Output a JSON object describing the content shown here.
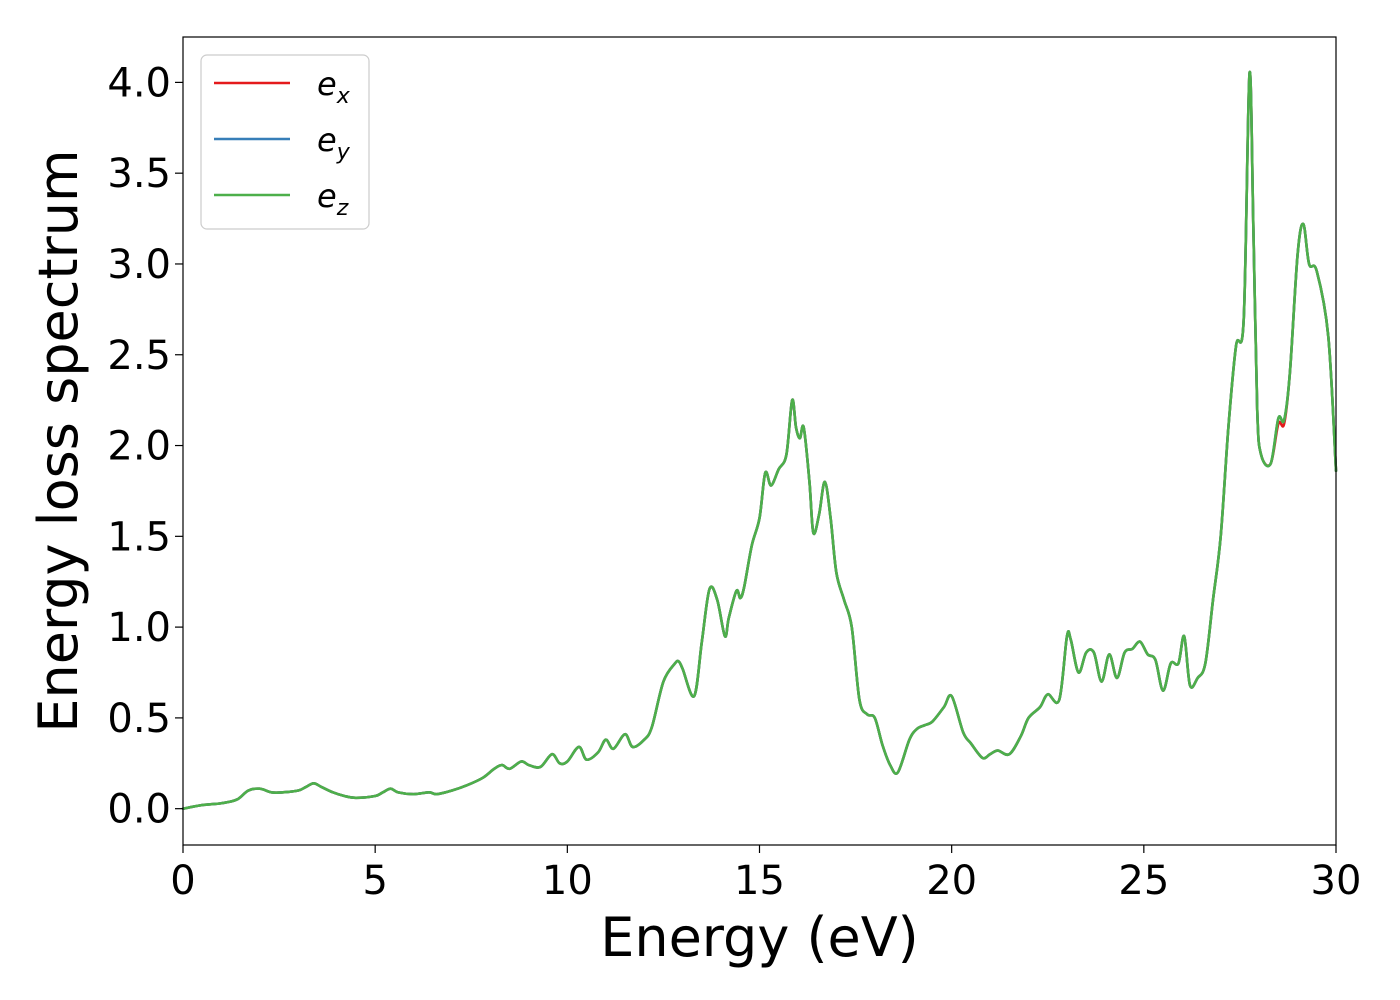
{
  "chart_data": {
    "type": "line",
    "title": "",
    "xlabel": "Energy (eV)",
    "ylabel": "Energy loss spectrum",
    "xlim": [
      0,
      30
    ],
    "ylim": [
      -0.2,
      4.25
    ],
    "xticks": [
      0,
      5,
      10,
      15,
      20,
      25,
      30
    ],
    "yticks": [
      0.0,
      0.5,
      1.0,
      1.5,
      2.0,
      2.5,
      3.0,
      3.5,
      4.0
    ],
    "xtick_labels": [
      "0",
      "5",
      "10",
      "15",
      "20",
      "25",
      "30"
    ],
    "ytick_labels": [
      "0.0",
      "0.5",
      "1.0",
      "1.5",
      "2.0",
      "2.5",
      "3.0",
      "3.5",
      "4.0"
    ],
    "grid": false,
    "legend_position": "top-left",
    "x": [
      0,
      0.5,
      1.0,
      1.4,
      1.7,
      2.0,
      2.3,
      2.6,
      3.0,
      3.2,
      3.4,
      3.6,
      3.9,
      4.2,
      4.5,
      5.0,
      5.2,
      5.4,
      5.6,
      6.0,
      6.4,
      6.6,
      7.0,
      7.4,
      7.8,
      8.1,
      8.3,
      8.5,
      8.8,
      9.0,
      9.3,
      9.6,
      9.8,
      10.0,
      10.3,
      10.5,
      10.8,
      11.0,
      11.2,
      11.5,
      11.7,
      12.0,
      12.2,
      12.5,
      12.8,
      12.9,
      13.0,
      13.3,
      13.5,
      13.7,
      13.9,
      14.1,
      14.2,
      14.4,
      14.5,
      14.6,
      14.8,
      15.0,
      15.15,
      15.3,
      15.5,
      15.7,
      15.85,
      15.95,
      16.05,
      16.15,
      16.3,
      16.4,
      16.55,
      16.7,
      16.85,
      17.0,
      17.2,
      17.4,
      17.6,
      17.8,
      18.0,
      18.2,
      18.4,
      18.6,
      18.9,
      19.1,
      19.3,
      19.5,
      19.8,
      20.0,
      20.3,
      20.5,
      20.8,
      21.0,
      21.2,
      21.5,
      21.8,
      22.0,
      22.3,
      22.5,
      22.8,
      23.0,
      23.1,
      23.3,
      23.5,
      23.7,
      23.9,
      24.1,
      24.3,
      24.5,
      24.7,
      24.9,
      25.1,
      25.3,
      25.5,
      25.7,
      25.9,
      26.05,
      26.2,
      26.4,
      26.6,
      26.8,
      27.0,
      27.2,
      27.4,
      27.6,
      27.75,
      27.85,
      27.95,
      28.05,
      28.3,
      28.5,
      28.65,
      28.8,
      29.0,
      29.15,
      29.3,
      29.5,
      29.8,
      30.0
    ],
    "series": [
      {
        "name": "e_x",
        "color": "#e41a1c",
        "values": [
          0.0,
          0.02,
          0.03,
          0.05,
          0.1,
          0.11,
          0.09,
          0.09,
          0.1,
          0.12,
          0.14,
          0.12,
          0.09,
          0.07,
          0.06,
          0.07,
          0.09,
          0.11,
          0.09,
          0.08,
          0.09,
          0.08,
          0.1,
          0.13,
          0.17,
          0.22,
          0.24,
          0.22,
          0.26,
          0.24,
          0.23,
          0.3,
          0.25,
          0.26,
          0.34,
          0.27,
          0.31,
          0.38,
          0.33,
          0.41,
          0.34,
          0.38,
          0.45,
          0.7,
          0.8,
          0.81,
          0.77,
          0.62,
          0.92,
          1.21,
          1.15,
          0.95,
          1.05,
          1.2,
          1.16,
          1.22,
          1.45,
          1.6,
          1.85,
          1.78,
          1.87,
          1.95,
          2.25,
          2.1,
          2.04,
          2.1,
          1.8,
          1.52,
          1.62,
          1.8,
          1.6,
          1.3,
          1.15,
          1.0,
          0.6,
          0.52,
          0.5,
          0.35,
          0.24,
          0.2,
          0.38,
          0.44,
          0.46,
          0.48,
          0.56,
          0.62,
          0.42,
          0.36,
          0.28,
          0.3,
          0.32,
          0.3,
          0.4,
          0.5,
          0.56,
          0.63,
          0.6,
          0.95,
          0.93,
          0.75,
          0.86,
          0.86,
          0.7,
          0.85,
          0.72,
          0.86,
          0.88,
          0.92,
          0.85,
          0.82,
          0.65,
          0.8,
          0.8,
          0.95,
          0.68,
          0.72,
          0.8,
          1.15,
          1.5,
          2.1,
          2.55,
          2.7,
          4.05,
          3.2,
          2.2,
          1.95,
          1.9,
          2.12,
          2.12,
          2.4,
          3.05,
          3.22,
          3.0,
          2.96,
          2.6,
          1.86
        ]
      },
      {
        "name": "e_y",
        "color": "#377eb8",
        "values": [
          0.0,
          0.02,
          0.03,
          0.05,
          0.1,
          0.11,
          0.09,
          0.09,
          0.1,
          0.12,
          0.14,
          0.12,
          0.09,
          0.07,
          0.06,
          0.07,
          0.09,
          0.11,
          0.09,
          0.08,
          0.09,
          0.08,
          0.1,
          0.13,
          0.17,
          0.22,
          0.24,
          0.22,
          0.26,
          0.24,
          0.23,
          0.3,
          0.25,
          0.26,
          0.34,
          0.27,
          0.31,
          0.38,
          0.33,
          0.41,
          0.34,
          0.38,
          0.45,
          0.7,
          0.8,
          0.81,
          0.77,
          0.62,
          0.92,
          1.21,
          1.15,
          0.95,
          1.05,
          1.2,
          1.16,
          1.22,
          1.45,
          1.6,
          1.85,
          1.78,
          1.87,
          1.95,
          2.25,
          2.1,
          2.04,
          2.1,
          1.8,
          1.52,
          1.62,
          1.8,
          1.6,
          1.3,
          1.15,
          1.0,
          0.6,
          0.52,
          0.5,
          0.35,
          0.24,
          0.2,
          0.38,
          0.44,
          0.46,
          0.48,
          0.56,
          0.62,
          0.42,
          0.36,
          0.28,
          0.3,
          0.32,
          0.3,
          0.4,
          0.5,
          0.56,
          0.63,
          0.6,
          0.95,
          0.93,
          0.75,
          0.86,
          0.86,
          0.7,
          0.85,
          0.72,
          0.86,
          0.88,
          0.92,
          0.85,
          0.82,
          0.65,
          0.8,
          0.8,
          0.95,
          0.68,
          0.72,
          0.8,
          1.15,
          1.5,
          2.1,
          2.55,
          2.7,
          4.05,
          3.2,
          2.2,
          1.95,
          1.9,
          2.15,
          2.14,
          2.4,
          3.05,
          3.22,
          3.0,
          2.96,
          2.6,
          1.86
        ]
      },
      {
        "name": "e_z",
        "color": "#4daf4a",
        "values": [
          0.0,
          0.02,
          0.03,
          0.05,
          0.1,
          0.11,
          0.09,
          0.09,
          0.1,
          0.12,
          0.14,
          0.12,
          0.09,
          0.07,
          0.06,
          0.07,
          0.09,
          0.11,
          0.09,
          0.08,
          0.09,
          0.08,
          0.1,
          0.13,
          0.17,
          0.22,
          0.24,
          0.22,
          0.26,
          0.24,
          0.23,
          0.3,
          0.25,
          0.26,
          0.34,
          0.27,
          0.31,
          0.38,
          0.33,
          0.41,
          0.34,
          0.38,
          0.45,
          0.7,
          0.8,
          0.81,
          0.77,
          0.62,
          0.92,
          1.21,
          1.15,
          0.95,
          1.05,
          1.2,
          1.16,
          1.22,
          1.45,
          1.6,
          1.85,
          1.78,
          1.87,
          1.95,
          2.25,
          2.1,
          2.04,
          2.1,
          1.8,
          1.52,
          1.62,
          1.8,
          1.6,
          1.3,
          1.15,
          1.0,
          0.6,
          0.52,
          0.5,
          0.35,
          0.24,
          0.2,
          0.38,
          0.44,
          0.46,
          0.48,
          0.56,
          0.62,
          0.42,
          0.36,
          0.28,
          0.3,
          0.32,
          0.3,
          0.4,
          0.5,
          0.56,
          0.63,
          0.6,
          0.95,
          0.93,
          0.75,
          0.86,
          0.86,
          0.7,
          0.85,
          0.72,
          0.86,
          0.88,
          0.92,
          0.85,
          0.82,
          0.65,
          0.8,
          0.8,
          0.95,
          0.68,
          0.72,
          0.8,
          1.15,
          1.5,
          2.1,
          2.55,
          2.7,
          4.05,
          3.2,
          2.2,
          1.95,
          1.9,
          2.15,
          2.14,
          2.4,
          3.05,
          3.22,
          3.0,
          2.96,
          2.6,
          1.86
        ]
      }
    ],
    "legend": [
      {
        "base": "e",
        "sub": "x",
        "color": "#e41a1c"
      },
      {
        "base": "e",
        "sub": "y",
        "color": "#377eb8"
      },
      {
        "base": "e",
        "sub": "z",
        "color": "#4daf4a"
      }
    ]
  }
}
